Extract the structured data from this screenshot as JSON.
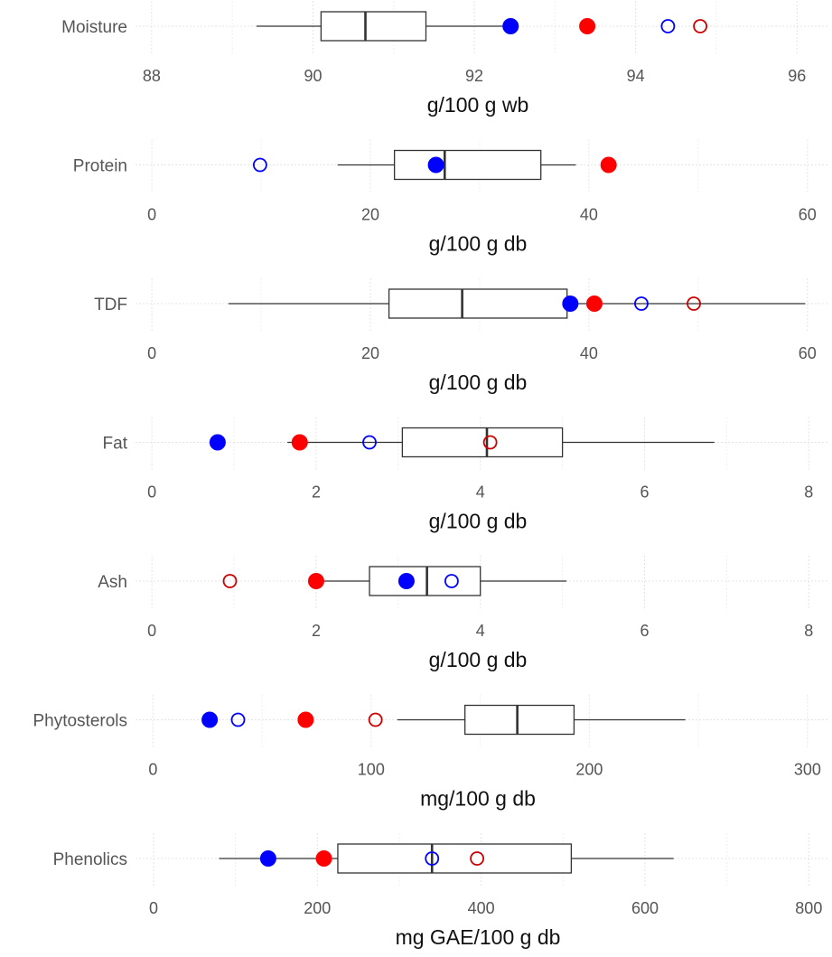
{
  "chart_data": {
    "type": "boxplot",
    "colors": {
      "filled_blue": "#0000ff",
      "filled_red": "#ff0000",
      "open_blue": "#0000ff",
      "open_red": "#cc0000",
      "box": "#333333"
    },
    "panels": [
      {
        "label": "Moisture",
        "xlabel": "g/100 g wb",
        "xlim": [
          87.8,
          96.4
        ],
        "ticks": [
          88,
          90,
          92,
          94,
          96
        ],
        "tick_labels": [
          "88",
          "90",
          "92",
          "94",
          "96"
        ],
        "box": {
          "min": 89.3,
          "q1": 90.1,
          "median": 90.65,
          "q3": 91.4,
          "max": 92.5
        },
        "points": [
          {
            "series": "filled_blue",
            "value": 92.45
          },
          {
            "series": "filled_red",
            "value": 93.4
          },
          {
            "series": "open_blue",
            "value": 94.4
          },
          {
            "series": "open_red",
            "value": 94.8
          }
        ]
      },
      {
        "label": "Protein",
        "xlabel": "g/100 g db",
        "xlim": [
          -1.5,
          62
        ],
        "ticks": [
          0,
          20,
          40,
          60
        ],
        "tick_labels": [
          "0",
          "20",
          "40",
          "60"
        ],
        "box": {
          "min": 17,
          "q1": 22.2,
          "median": 26.8,
          "q3": 35.6,
          "max": 38.8
        },
        "points": [
          {
            "series": "open_blue",
            "value": 9.9
          },
          {
            "series": "filled_blue",
            "value": 26
          },
          {
            "series": "filled_red",
            "value": 41.8
          }
        ]
      },
      {
        "label": "TDF",
        "xlabel": "g/100 g db",
        "xlim": [
          -1.5,
          62
        ],
        "ticks": [
          0,
          20,
          40,
          60
        ],
        "tick_labels": [
          "0",
          "20",
          "40",
          "60"
        ],
        "box": {
          "min": 7,
          "q1": 21.7,
          "median": 28.4,
          "q3": 38,
          "max": 59.8
        },
        "points": [
          {
            "series": "filled_blue",
            "value": 38.3
          },
          {
            "series": "filled_red",
            "value": 40.5
          },
          {
            "series": "open_blue",
            "value": 44.8
          },
          {
            "series": "open_red",
            "value": 49.6
          }
        ]
      },
      {
        "label": "Fat",
        "xlabel": "g/100 g db",
        "xlim": [
          -0.2,
          8.25
        ],
        "ticks": [
          0,
          2,
          4,
          6,
          8
        ],
        "tick_labels": [
          "0",
          "2",
          "4",
          "6",
          "8"
        ],
        "box": {
          "min": 1.65,
          "q1": 3.05,
          "median": 4.08,
          "q3": 5,
          "max": 6.85
        },
        "points": [
          {
            "series": "filled_blue",
            "value": 0.8
          },
          {
            "series": "filled_red",
            "value": 1.8
          },
          {
            "series": "open_blue",
            "value": 2.65
          },
          {
            "series": "open_red",
            "value": 4.12
          }
        ]
      },
      {
        "label": "Ash",
        "xlabel": "g/100 g db",
        "xlim": [
          -0.2,
          8.25
        ],
        "ticks": [
          0,
          2,
          4,
          6,
          8
        ],
        "tick_labels": [
          "0",
          "2",
          "4",
          "6",
          "8"
        ],
        "box": {
          "min": 2.05,
          "q1": 2.65,
          "median": 3.35,
          "q3": 4,
          "max": 5.05
        },
        "points": [
          {
            "series": "open_red",
            "value": 0.95
          },
          {
            "series": "filled_red",
            "value": 2
          },
          {
            "series": "filled_blue",
            "value": 3.1
          },
          {
            "series": "open_blue",
            "value": 3.65
          }
        ]
      },
      {
        "label": "Phytosterols",
        "xlabel": "mg/100 g db",
        "xlim": [
          -8,
          310
        ],
        "ticks": [
          0,
          100,
          200,
          300
        ],
        "tick_labels": [
          "0",
          "100",
          "200",
          "300"
        ],
        "box": {
          "min": 112,
          "q1": 143,
          "median": 167,
          "q3": 193,
          "max": 244
        },
        "points": [
          {
            "series": "filled_blue",
            "value": 26
          },
          {
            "series": "open_blue",
            "value": 39
          },
          {
            "series": "filled_red",
            "value": 70
          },
          {
            "series": "open_red",
            "value": 102
          }
        ]
      },
      {
        "label": "Phenolics",
        "xlabel": "mg GAE/100 g db",
        "xlim": [
          -22,
          825
        ],
        "ticks": [
          0,
          200,
          400,
          600,
          800
        ],
        "tick_labels": [
          "0",
          "200",
          "400",
          "600",
          "800"
        ],
        "box": {
          "min": 80,
          "q1": 225,
          "median": 340,
          "q3": 510,
          "max": 635
        },
        "points": [
          {
            "series": "filled_blue",
            "value": 140
          },
          {
            "series": "filled_red",
            "value": 208
          },
          {
            "series": "open_blue",
            "value": 340
          },
          {
            "series": "open_red",
            "value": 395
          }
        ]
      }
    ]
  }
}
